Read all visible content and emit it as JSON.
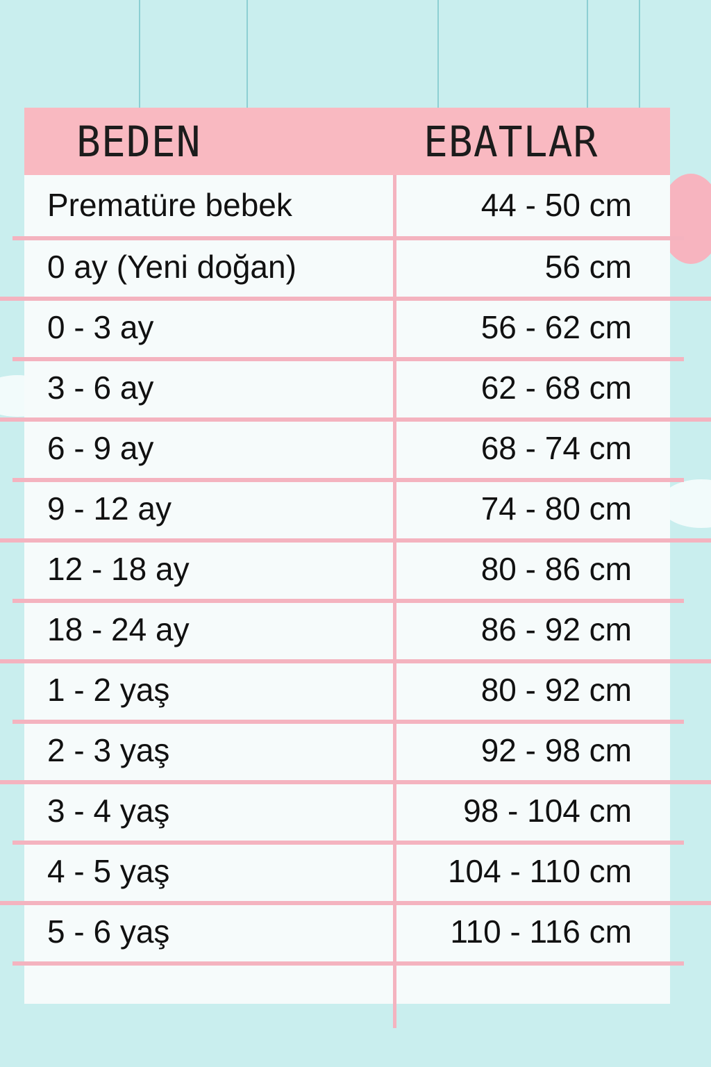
{
  "colors": {
    "background": "#c9eeee",
    "header": "#f9b9c1",
    "grid_lines": "#f4b3bf",
    "panel": "#f6fbfb"
  },
  "table": {
    "headers": [
      "BEDEN",
      "EBATLAR"
    ],
    "rows": [
      {
        "size": "Prematüre bebek",
        "dimension": "44 - 50 cm"
      },
      {
        "size": "0 ay (Yeni doğan)",
        "dimension": "56 cm"
      },
      {
        "size": "0 - 3 ay",
        "dimension": "56 - 62 cm"
      },
      {
        "size": "3 - 6 ay",
        "dimension": "62 - 68 cm"
      },
      {
        "size": "6 - 9 ay",
        "dimension": "68 - 74 cm"
      },
      {
        "size": "9 - 12 ay",
        "dimension": "74 - 80 cm"
      },
      {
        "size": "12 - 18 ay",
        "dimension": "80 - 86 cm"
      },
      {
        "size": "18 - 24 ay",
        "dimension": "86 - 92 cm"
      },
      {
        "size": "1 - 2 yaş",
        "dimension": "80 - 92 cm"
      },
      {
        "size": "2 - 3 yaş",
        "dimension": "92 - 98 cm"
      },
      {
        "size": "3 - 4 yaş",
        "dimension": "98 - 104 cm"
      },
      {
        "size": "4 - 5 yaş",
        "dimension": "104 - 110 cm"
      },
      {
        "size": "5 - 6 yaş",
        "dimension": "110 - 116 cm"
      }
    ]
  }
}
